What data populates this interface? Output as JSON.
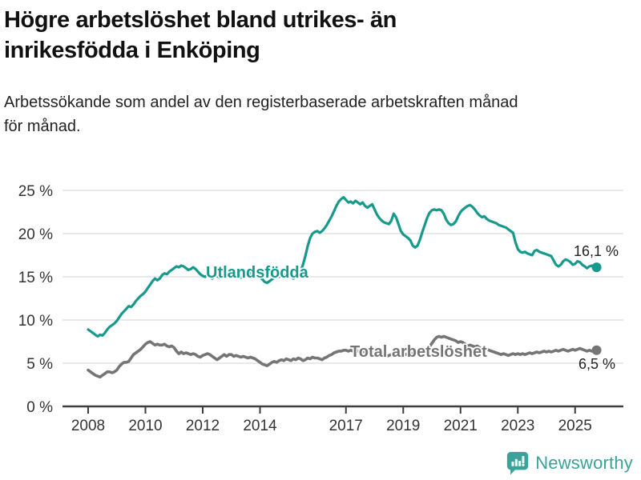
{
  "header": {
    "title_lines": [
      "Högre arbetslöshet bland utrikes- än",
      "inrikesfödda i Enköping"
    ],
    "subtitle_lines": [
      "Arbetssökande som andel av den registerbaserade arbetskraften månad",
      "för månad."
    ]
  },
  "footer": {
    "brand": "Newsworthy",
    "logo_icon": "newsworthy-speech-bubble-chart-icon"
  },
  "colors": {
    "accent_teal": "#17998c",
    "series_gray": "#757575",
    "grid": "#dcdcdc",
    "axis": "#3d3d3d",
    "tick_text": "#333333",
    "annotation_text": "#222222",
    "logo_teal": "#3aa29a"
  },
  "chart_data": {
    "type": "line",
    "title": "Högre arbetslöshet bland utrikes- än inrikesfödda i Enköping",
    "subtitle": "Arbetssökande som andel av den registerbaserade arbetskraften månad för månad.",
    "x_unit": "month",
    "x_start": "2008-01",
    "x_end": "2025-10",
    "ylim": [
      0,
      25
    ],
    "ytick_values": [
      0,
      5,
      10,
      15,
      20,
      25
    ],
    "ytick_labels": [
      "0 %",
      "5 %",
      "10 %",
      "15 %",
      "20 %",
      "25 %"
    ],
    "xticks": [
      2008,
      2010,
      2012,
      2014,
      2017,
      2019,
      2021,
      2023,
      2025
    ],
    "grid": "horizontal",
    "legend_position": "inline-labels",
    "series": [
      {
        "id": "utlandsfodda",
        "name": "Utlandsfödda",
        "color": "#17998c",
        "line_width": 3.2,
        "end_value": 16.1,
        "end_label": "16,1 %",
        "values": [
          8.9,
          8.7,
          8.5,
          8.3,
          8.1,
          8.3,
          8.2,
          8.5,
          8.9,
          9.2,
          9.4,
          9.6,
          9.9,
          10.3,
          10.7,
          11.0,
          11.3,
          11.6,
          11.5,
          11.8,
          12.2,
          12.5,
          12.8,
          13.0,
          13.3,
          13.7,
          14.1,
          14.5,
          14.8,
          14.6,
          14.8,
          15.2,
          15.4,
          15.3,
          15.6,
          15.8,
          16.0,
          16.2,
          16.1,
          16.3,
          16.2,
          16.0,
          15.8,
          15.9,
          16.1,
          15.9,
          15.6,
          15.3,
          15.1,
          15.0,
          15.2,
          15.0,
          14.8,
          15.0,
          15.1,
          14.9,
          15.1,
          15.3,
          15.2,
          15.0,
          15.2,
          15.4,
          15.3,
          15.1,
          14.9,
          15.1,
          15.3,
          15.2,
          15.4,
          15.3,
          15.1,
          15.0,
          14.9,
          14.7,
          14.4,
          14.3,
          14.5,
          14.7,
          14.9,
          15.1,
          15.0,
          15.2,
          15.1,
          15.3,
          15.2,
          15.0,
          14.8,
          15.0,
          15.3,
          15.6,
          16.4,
          17.4,
          18.6,
          19.5,
          20.0,
          20.2,
          20.3,
          20.1,
          20.3,
          20.6,
          21.0,
          21.5,
          22.0,
          22.6,
          23.2,
          23.7,
          24.0,
          24.2,
          23.9,
          23.6,
          23.7,
          23.5,
          23.8,
          23.6,
          23.4,
          23.6,
          23.2,
          23.0,
          23.2,
          23.4,
          22.8,
          22.2,
          21.8,
          21.5,
          21.3,
          21.2,
          21.1,
          21.5,
          22.3,
          21.9,
          21.1,
          20.3,
          19.9,
          19.7,
          19.5,
          19.2,
          18.6,
          18.4,
          18.6,
          19.3,
          20.2,
          21.0,
          21.8,
          22.4,
          22.7,
          22.8,
          22.7,
          22.8,
          22.7,
          22.3,
          21.6,
          21.2,
          21.0,
          21.1,
          21.4,
          22.0,
          22.5,
          22.8,
          23.0,
          23.2,
          23.3,
          23.1,
          22.8,
          22.4,
          22.1,
          21.9,
          22.0,
          21.7,
          21.5,
          21.4,
          21.3,
          21.2,
          21.0,
          20.9,
          20.8,
          20.7,
          20.5,
          20.3,
          20.1,
          19.0,
          18.2,
          17.9,
          17.8,
          17.9,
          17.7,
          17.6,
          17.5,
          18.0,
          18.1,
          17.9,
          17.8,
          17.7,
          17.6,
          17.5,
          17.4,
          16.9,
          16.4,
          16.2,
          16.4,
          16.8,
          17.0,
          16.9,
          16.7,
          16.4,
          16.5,
          16.8,
          16.7,
          16.4,
          16.2,
          16.0,
          16.2,
          16.3,
          16.0,
          16.1
        ]
      },
      {
        "id": "total-arbetsloshet",
        "name": "Total arbetslöshet",
        "color": "#757575",
        "line_width": 3.6,
        "end_value": 6.5,
        "end_label": "6,5 %",
        "values": [
          4.2,
          4.0,
          3.8,
          3.6,
          3.5,
          3.4,
          3.6,
          3.8,
          4.0,
          4.0,
          3.9,
          4.0,
          4.2,
          4.6,
          4.9,
          5.1,
          5.1,
          5.2,
          5.6,
          6.0,
          6.2,
          6.4,
          6.6,
          6.9,
          7.2,
          7.4,
          7.5,
          7.3,
          7.1,
          7.2,
          7.1,
          7.1,
          7.2,
          7.0,
          6.9,
          7.0,
          6.8,
          6.4,
          6.1,
          6.3,
          6.1,
          6.2,
          6.1,
          6.0,
          6.1,
          6.0,
          5.8,
          5.7,
          5.9,
          6.0,
          6.1,
          6.0,
          5.8,
          5.6,
          5.4,
          5.6,
          5.8,
          6.0,
          5.8,
          6.0,
          6.0,
          5.8,
          5.9,
          5.8,
          5.7,
          5.8,
          5.7,
          5.6,
          5.7,
          5.6,
          5.5,
          5.3,
          5.1,
          4.9,
          4.8,
          4.7,
          4.9,
          5.1,
          5.2,
          5.1,
          5.3,
          5.4,
          5.3,
          5.5,
          5.4,
          5.3,
          5.5,
          5.4,
          5.6,
          5.5,
          5.3,
          5.4,
          5.6,
          5.5,
          5.7,
          5.6,
          5.6,
          5.5,
          5.4,
          5.6,
          5.7,
          5.9,
          6.0,
          6.2,
          6.3,
          6.4,
          6.4,
          6.5,
          6.5,
          6.4,
          6.5,
          6.4,
          6.5,
          6.4,
          6.3,
          6.4,
          6.3,
          6.2,
          6.3,
          6.4,
          6.3,
          6.2,
          6.1,
          6.0,
          5.9,
          5.8,
          5.9,
          6.0,
          5.9,
          5.8,
          5.9,
          6.0,
          6.1,
          6.0,
          6.1,
          6.2,
          6.1,
          6.2,
          6.3,
          6.4,
          6.5,
          6.6,
          6.7,
          6.9,
          7.3,
          7.7,
          8.0,
          8.1,
          8.0,
          8.1,
          8.0,
          7.9,
          7.8,
          7.7,
          7.6,
          7.4,
          7.5,
          7.4,
          7.2,
          7.0,
          7.1,
          7.0,
          6.9,
          7.0,
          6.8,
          6.7,
          6.6,
          6.6,
          6.5,
          6.4,
          6.3,
          6.2,
          6.1,
          6.0,
          6.1,
          6.0,
          5.9,
          6.0,
          6.1,
          6.0,
          6.1,
          6.0,
          6.1,
          6.0,
          6.1,
          6.2,
          6.1,
          6.2,
          6.3,
          6.2,
          6.3,
          6.4,
          6.3,
          6.4,
          6.3,
          6.4,
          6.5,
          6.4,
          6.5,
          6.6,
          6.5,
          6.4,
          6.5,
          6.6,
          6.5,
          6.6,
          6.7,
          6.6,
          6.5,
          6.4,
          6.5,
          6.4,
          6.4,
          6.5
        ]
      }
    ]
  }
}
